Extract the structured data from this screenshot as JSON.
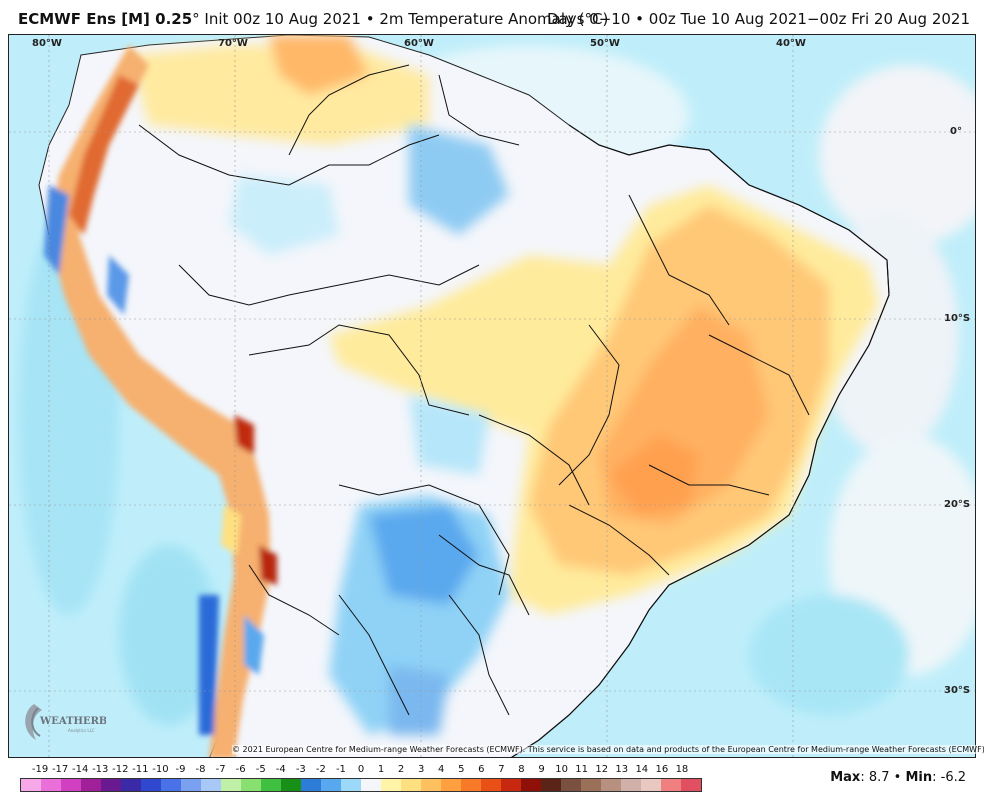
{
  "header": {
    "model_bold": "ECMWF Ens [M] 0.25",
    "model_degree": "°",
    "init": " Init 00z 10 Aug 2021",
    "bullet": " • ",
    "variable": "2m Temperature Anomaly (°C)",
    "range": "Days 0−10 • 00z Tue 10 Aug 2021−00z Fri 20 Aug 2021"
  },
  "map": {
    "longitude_labels": [
      "80°W",
      "70°W",
      "60°W",
      "50°W",
      "40°W"
    ],
    "latitude_labels": [
      "0°",
      "10°S",
      "20°S",
      "30°S"
    ],
    "credit": "© 2021 European Centre for Medium-range Weather Forecasts (ECMWF). This service is based on data and products of the European Centre for Medium-range Weather Forecasts (ECMWF).",
    "logo_text": "WEATHERBELL",
    "logo_sub": "Analytics LLC"
  },
  "colorbar": {
    "labels": [
      "-19",
      "-17",
      "-14",
      "-13",
      "-12",
      "-11",
      "-10",
      "-9",
      "-8",
      "-7",
      "-6",
      "-5",
      "-4",
      "-3",
      "-2",
      "-1",
      "0",
      "1",
      "2",
      "3",
      "4",
      "5",
      "6",
      "7",
      "8",
      "9",
      "10",
      "11",
      "12",
      "13",
      "14",
      "16",
      "18"
    ],
    "colors": [
      "#f7a8e8",
      "#ea6fd8",
      "#d040c0",
      "#a0209a",
      "#6a1a90",
      "#3a2aa8",
      "#3048d0",
      "#4a72e8",
      "#7aa0f0",
      "#a8c8f8",
      "#c0f0a8",
      "#88e070",
      "#40c040",
      "#189018",
      "#2c7cd8",
      "#58a8f0",
      "#9cd8f8",
      "#f4f6fa",
      "#fff4a8",
      "#ffe080",
      "#ffc060",
      "#ffa040",
      "#f87a28",
      "#e85018",
      "#c82810",
      "#901008",
      "#5a2418",
      "#7a5040",
      "#9a7058",
      "#b89080",
      "#d0b0a8",
      "#e8c8c0",
      "#f08080",
      "#e05060"
    ]
  },
  "stats": {
    "max_label": "Max",
    "max_value": ": 8.7",
    "sep": " • ",
    "min_label": "Min",
    "min_value": ": -6.2"
  }
}
